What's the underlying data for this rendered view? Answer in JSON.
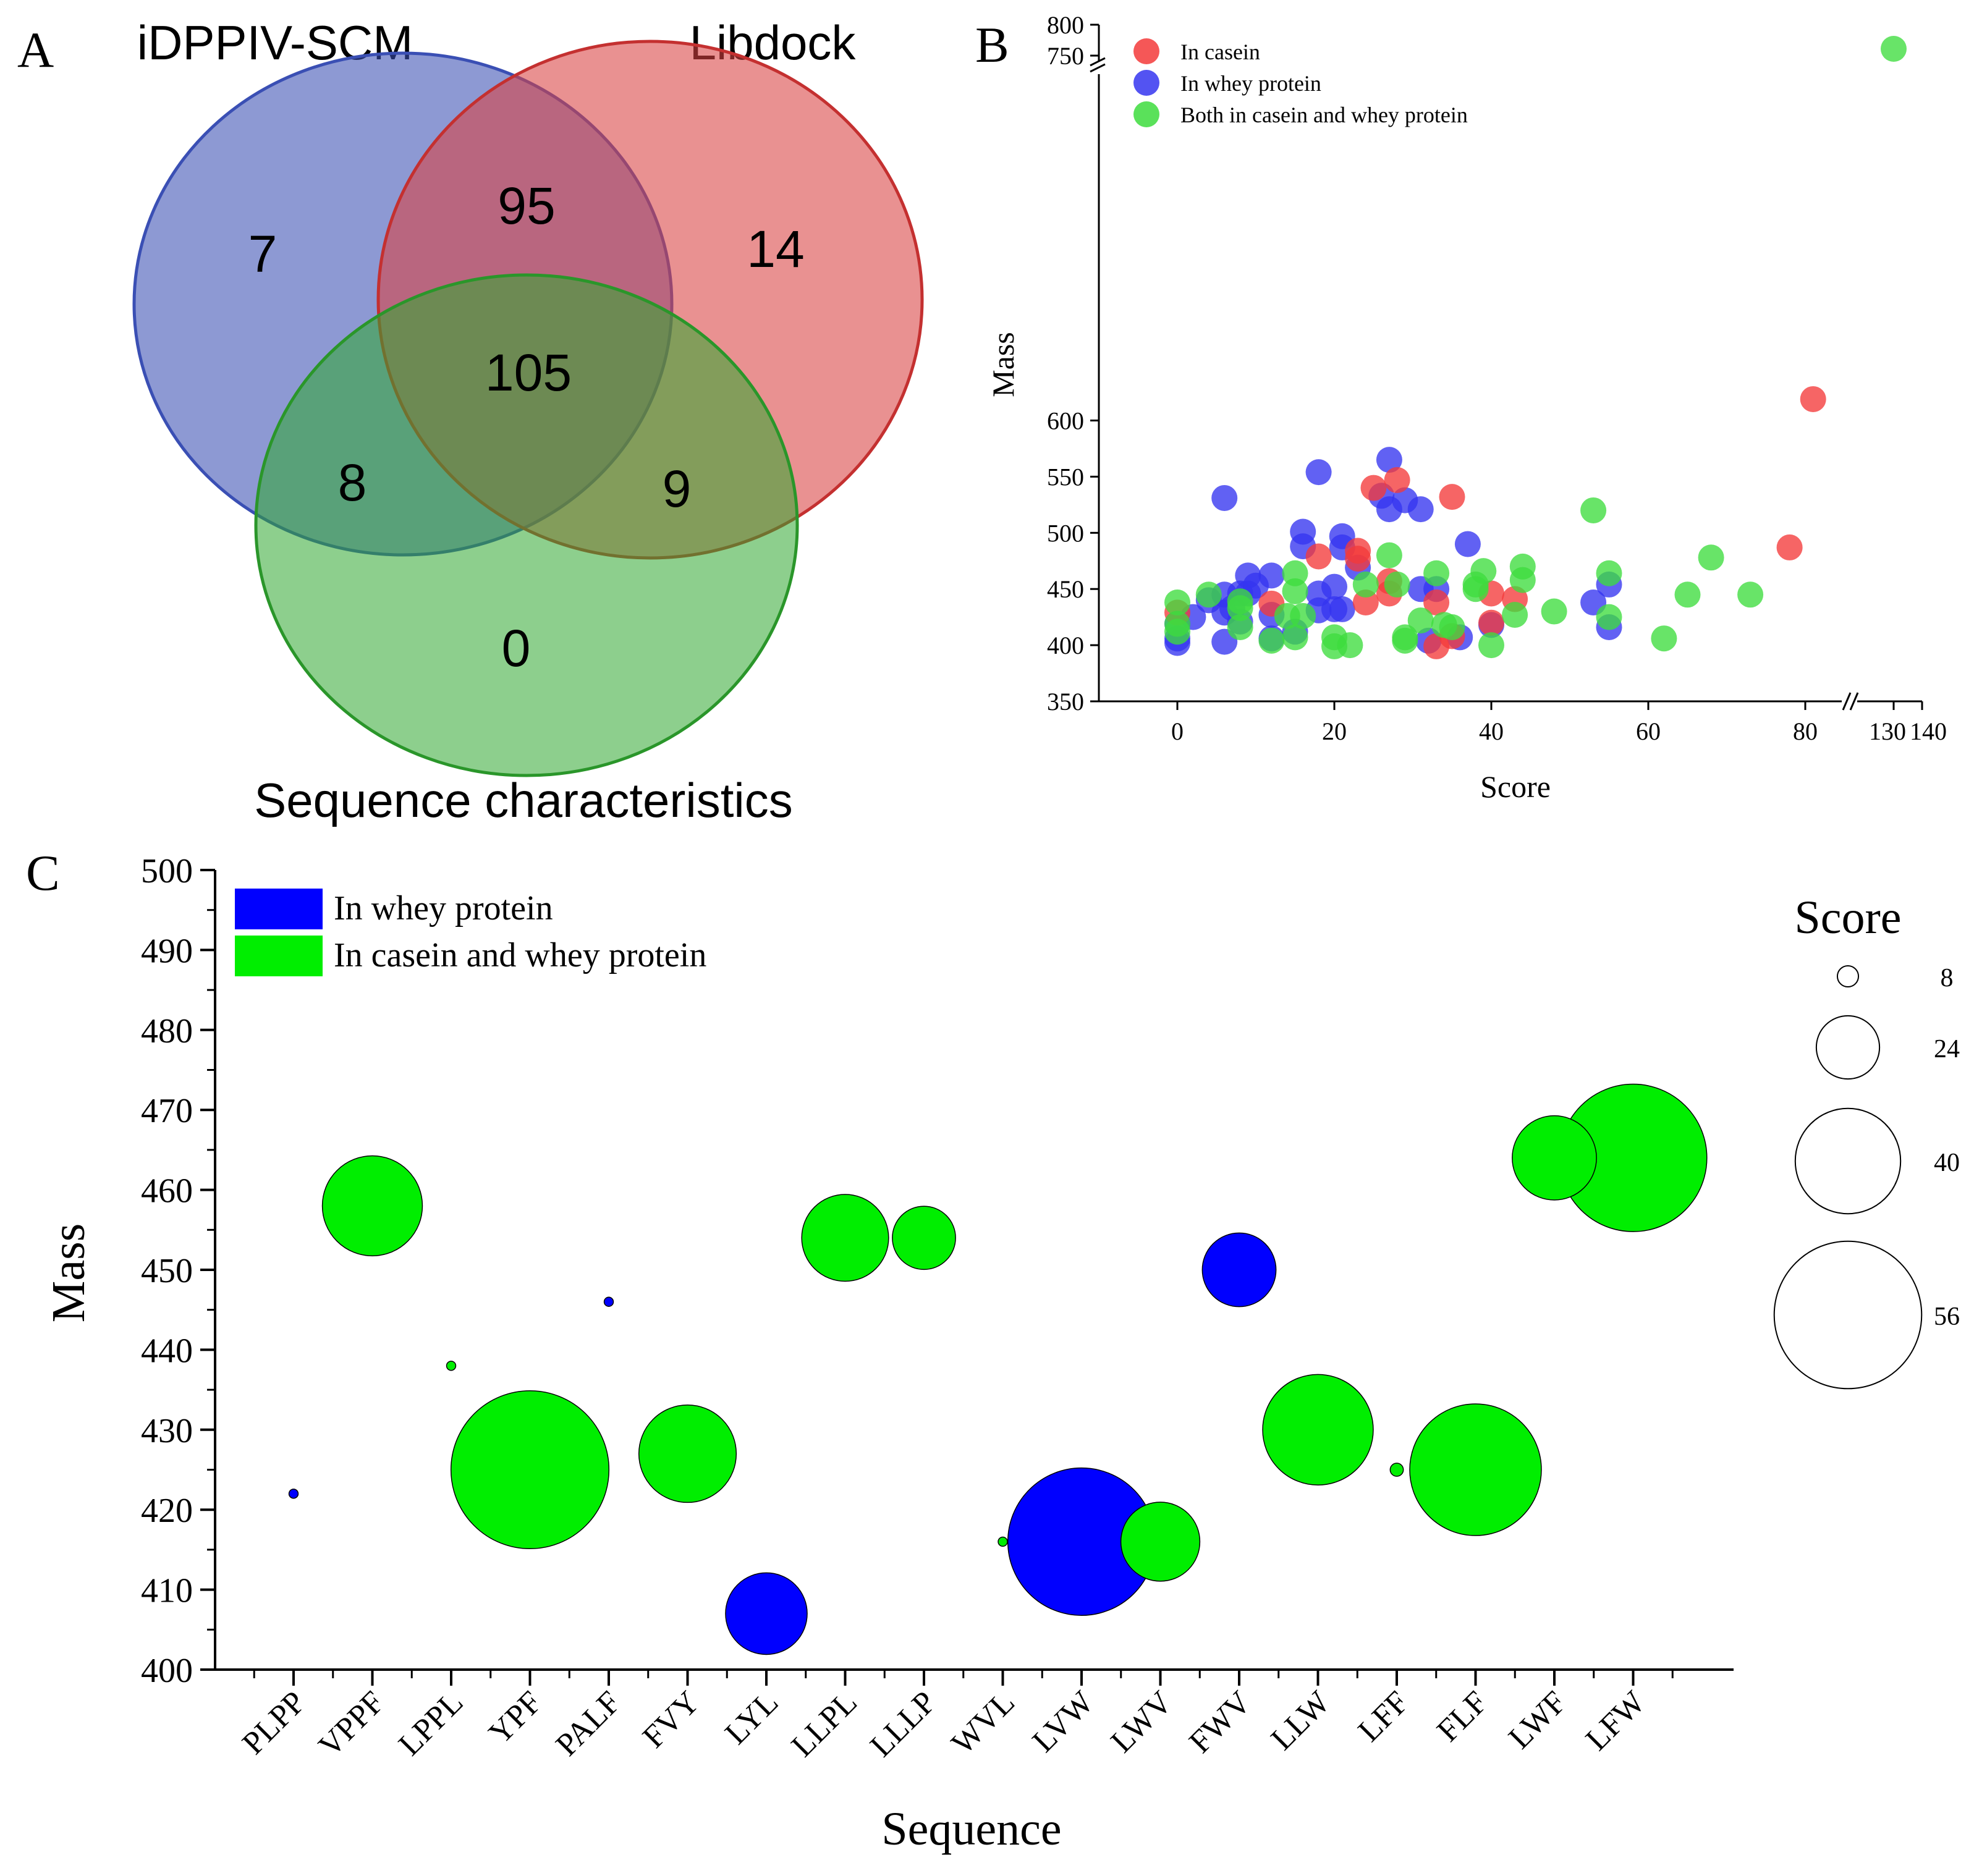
{
  "panels": {
    "a": "A",
    "b": "B",
    "c": "C"
  },
  "colors": {
    "blue": "#3a4fb4",
    "red": "#d94242",
    "green": "#2fa82f",
    "b_red": "#f33a3a",
    "b_blue": "#3535f0",
    "b_green": "#3ddc3d",
    "c_blue": "#0000ff",
    "c_green": "#00ee00"
  },
  "chart_data": [
    {
      "type": "venn",
      "sets": [
        "iDPPIV-SCM",
        "Libdock",
        "Sequence characteristics"
      ],
      "regions": {
        "iDPPIV-SCM_only": 7,
        "Libdock_only": 14,
        "Sequence_only": 0,
        "iDPPIV-SCM_Libdock": 95,
        "iDPPIV-SCM_Sequence": 8,
        "Libdock_Sequence": 9,
        "all_three": 105
      },
      "region_labels": [
        "7",
        "14",
        "0",
        "95",
        "8",
        "9",
        "105"
      ]
    },
    {
      "type": "scatter",
      "xlabel": "Score",
      "ylabel": "Mass",
      "xlim": [
        -10,
        140
      ],
      "x_break": [
        82,
        130
      ],
      "ylim": [
        350,
        800
      ],
      "y_break": [
        625,
        750
      ],
      "xticks": [
        "0",
        "20",
        "40",
        "60",
        "80",
        "130",
        "140"
      ],
      "yticks": [
        "350",
        "400",
        "450",
        "500",
        "550",
        "600",
        "750",
        "800"
      ],
      "legend": [
        "In casein",
        "In whey protein",
        "Both in casein and whey protein"
      ],
      "series": [
        {
          "name": "In casein",
          "points": [
            [
              0,
              429
            ],
            [
              12,
              437
            ],
            [
              18,
              479
            ],
            [
              23,
              477
            ],
            [
              23,
              484
            ],
            [
              24,
              438
            ],
            [
              25,
              540
            ],
            [
              27,
              457
            ],
            [
              27,
              446
            ],
            [
              28,
              547
            ],
            [
              33,
              399
            ],
            [
              33,
              438
            ],
            [
              35,
              532
            ],
            [
              35,
              408
            ],
            [
              40,
              420
            ],
            [
              40,
              446
            ],
            [
              43,
              441
            ],
            [
              78,
              487
            ],
            [
              81,
              619
            ]
          ]
        },
        {
          "name": "In whey protein",
          "points": [
            [
              0,
              402
            ],
            [
              0,
              406
            ],
            [
              0,
              419
            ],
            [
              2,
              425
            ],
            [
              4,
              440
            ],
            [
              6,
              429
            ],
            [
              6,
              531
            ],
            [
              6,
              403
            ],
            [
              6,
              445
            ],
            [
              7,
              433
            ],
            [
              8,
              446
            ],
            [
              8,
              421
            ],
            [
              9,
              462
            ],
            [
              9,
              446
            ],
            [
              10,
              453
            ],
            [
              12,
              427
            ],
            [
              12,
              462
            ],
            [
              12,
              406
            ],
            [
              15,
              412
            ],
            [
              16,
              501
            ],
            [
              16,
              488
            ],
            [
              18,
              554
            ],
            [
              18,
              446
            ],
            [
              18,
              431
            ],
            [
              20,
              452
            ],
            [
              20,
              432
            ],
            [
              21,
              432
            ],
            [
              21,
              497
            ],
            [
              21,
              487
            ],
            [
              23,
              469
            ],
            [
              26,
              533
            ],
            [
              27,
              565
            ],
            [
              27,
              521
            ],
            [
              29,
              529
            ],
            [
              31,
              521
            ],
            [
              31,
              450
            ],
            [
              32,
              404
            ],
            [
              33,
              450
            ],
            [
              36,
              407
            ],
            [
              37,
              490
            ],
            [
              40,
              418
            ],
            [
              53,
              438
            ],
            [
              55,
              454
            ],
            [
              55,
              416
            ]
          ]
        },
        {
          "name": "Both in casein and whey protein",
          "points": [
            [
              0,
              438
            ],
            [
              0,
              419
            ],
            [
              0,
              412
            ],
            [
              4,
              445
            ],
            [
              8,
              439
            ],
            [
              8,
              433
            ],
            [
              8,
              416
            ],
            [
              12,
              404
            ],
            [
              14,
              426
            ],
            [
              15,
              407
            ],
            [
              15,
              448
            ],
            [
              15,
              464
            ],
            [
              16,
              426
            ],
            [
              20,
              399
            ],
            [
              20,
              407
            ],
            [
              22,
              400
            ],
            [
              24,
              454
            ],
            [
              27,
              480
            ],
            [
              28,
              454
            ],
            [
              29,
              404
            ],
            [
              29,
              407
            ],
            [
              31,
              422
            ],
            [
              33,
              464
            ],
            [
              34,
              418
            ],
            [
              35,
              416
            ],
            [
              38,
              450
            ],
            [
              38,
              454
            ],
            [
              39,
              466
            ],
            [
              40,
              400
            ],
            [
              43,
              427
            ],
            [
              44,
              458
            ],
            [
              44,
              470
            ],
            [
              48,
              430
            ],
            [
              53,
              520
            ],
            [
              55,
              464
            ],
            [
              55,
              425
            ],
            [
              62,
              406
            ],
            [
              65,
              445
            ],
            [
              68,
              478
            ],
            [
              73,
              445
            ],
            [
              130,
              761
            ]
          ]
        }
      ]
    },
    {
      "type": "bubble",
      "xlabel": "Sequence",
      "ylabel": "Mass",
      "ylim": [
        400,
        500
      ],
      "yticks": [
        "400",
        "410",
        "420",
        "430",
        "440",
        "450",
        "460",
        "470",
        "480",
        "490",
        "500"
      ],
      "categories": [
        "PLPP",
        "VPPF",
        "LPPL",
        "YPF",
        "PALF",
        "FVY",
        "LYL",
        "LLPL",
        "LLLP",
        "WVL",
        "LVW",
        "LWV",
        "FWV",
        "LLW",
        "LFF",
        "FLF",
        "LWF",
        "LFW"
      ],
      "legend": [
        "In whey protein",
        "In casein and whey protein"
      ],
      "size_legend_title": "Score",
      "size_legend": [
        "8",
        "24",
        "40",
        "56"
      ],
      "size_legend_values": [
        8,
        24,
        40,
        56
      ],
      "points": [
        {
          "seq": "PLPP",
          "mass": 422,
          "score": 3,
          "group": "whey"
        },
        {
          "seq": "VPPF",
          "mass": 458,
          "score": 38,
          "group": "both"
        },
        {
          "seq": "LPPL",
          "mass": 438,
          "score": 3,
          "group": "both"
        },
        {
          "seq": "YPF",
          "mass": 425,
          "score": 60,
          "group": "both"
        },
        {
          "seq": "PALF",
          "mass": 446,
          "score": 3,
          "group": "whey"
        },
        {
          "seq": "FVY",
          "mass": 427,
          "score": 37,
          "group": "both"
        },
        {
          "seq": "LYL",
          "mass": 407,
          "score": 31,
          "group": "whey"
        },
        {
          "seq": "LLPL",
          "mass": 454,
          "score": 33,
          "group": "both"
        },
        {
          "seq": "LLLP",
          "mass": 454,
          "score": 24,
          "group": "both"
        },
        {
          "seq": "WVL",
          "mass": 416,
          "score": 3,
          "group": "both"
        },
        {
          "seq": "LVW",
          "mass": 416,
          "score": 56,
          "group": "whey"
        },
        {
          "seq": "LWV",
          "mass": 416,
          "score": 30,
          "group": "both"
        },
        {
          "seq": "FWV",
          "mass": 450,
          "score": 28,
          "group": "whey"
        },
        {
          "seq": "LLW",
          "mass": 430,
          "score": 42,
          "group": "both"
        },
        {
          "seq": "LFF",
          "mass": 425,
          "score": 5,
          "group": "both"
        },
        {
          "seq": "FLF",
          "mass": 425,
          "score": 50,
          "group": "both"
        },
        {
          "seq": "LWF",
          "mass": 464,
          "score": 32,
          "group": "both"
        },
        {
          "seq": "LFW",
          "mass": 464,
          "score": 56,
          "group": "both"
        }
      ]
    }
  ]
}
